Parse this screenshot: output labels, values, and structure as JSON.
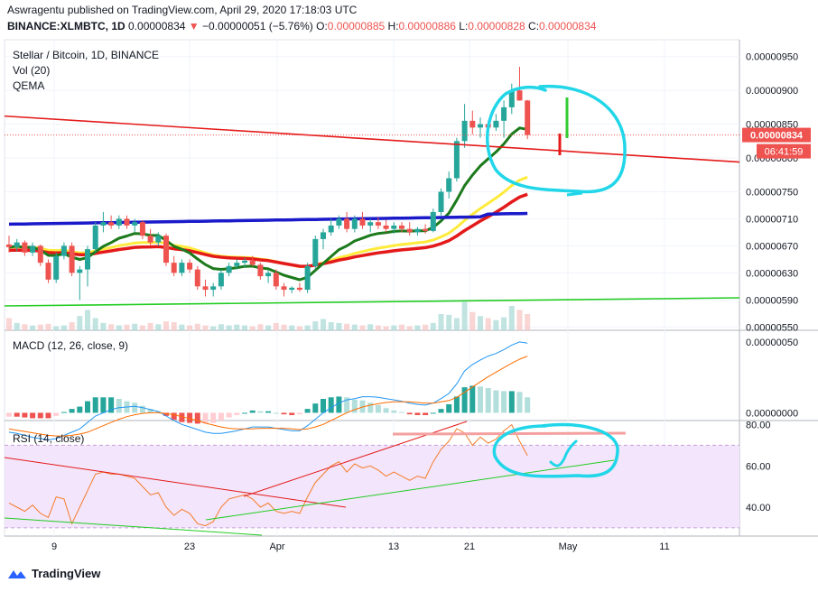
{
  "header": {
    "publisher_line": "Aswragentu published on TradingView.com, April 29, 2020 17:18:03 UTC",
    "symbol": "BINANCE:XLMBTC, 1D",
    "last_value": "0.00000834",
    "change_arrow": "▼",
    "change": "−0.00000051 (−5.76%)",
    "o_label": "O:",
    "o_value": "0.00000885",
    "h_label": "H:",
    "h_value": "0.00000886",
    "l_label": "L:",
    "l_value": "0.00000828",
    "c_label": "C:",
    "c_value": "0.00000834"
  },
  "legend": {
    "title": "Stellar / Bitcoin, 1D, BINANCE",
    "vol": "Vol (20)",
    "qema": "QEMA",
    "macd": "MACD (12, 26, close, 9)",
    "rsi": "RSI (14, close)"
  },
  "price_axis": {
    "ticks": [
      "0.00000950",
      "0.00000900",
      "0.00000850",
      "0.00000800",
      "0.00000750",
      "0.00000710",
      "0.00000670",
      "0.00000630",
      "0.00000590",
      "0.00000550"
    ],
    "last_price_tag": "0.00000834",
    "countdown_tag": "06:41:59"
  },
  "macd_axis": {
    "ticks": [
      "0.00000050",
      "0.00000000"
    ]
  },
  "rsi_axis": {
    "ticks": [
      "80.00",
      "60.00",
      "40.00"
    ]
  },
  "time_axis": {
    "ticks": [
      "9",
      "23",
      "Apr",
      "13",
      "21",
      "May",
      "11"
    ]
  },
  "footer": {
    "brand": "TradingView"
  },
  "colors": {
    "up": "#26a69a",
    "down": "#ef5350",
    "ma_blue": "#1a1aca",
    "ma_red": "#e41a1a",
    "ma_yellow": "#ffeb3b",
    "ma_green": "#1b7a1b",
    "macd": "#2196f3",
    "signal": "#ff6d00",
    "rsi": "#f57c2a",
    "rsi_band": "#f3e5fb",
    "trend_green": "#22cc22",
    "marker": "#20d6e8"
  },
  "chart_data": {
    "type": "candlestick",
    "candles": [
      {
        "o": 6.72,
        "h": 6.85,
        "l": 6.6,
        "c": 6.68
      },
      {
        "o": 6.68,
        "h": 6.8,
        "l": 6.62,
        "c": 6.75
      },
      {
        "o": 6.75,
        "h": 6.78,
        "l": 6.55,
        "c": 6.6
      },
      {
        "o": 6.6,
        "h": 6.75,
        "l": 6.55,
        "c": 6.7
      },
      {
        "o": 6.7,
        "h": 6.72,
        "l": 6.4,
        "c": 6.45
      },
      {
        "o": 6.45,
        "h": 6.5,
        "l": 6.15,
        "c": 6.2
      },
      {
        "o": 6.2,
        "h": 6.6,
        "l": 6.15,
        "c": 6.55
      },
      {
        "o": 6.55,
        "h": 6.75,
        "l": 6.5,
        "c": 6.7
      },
      {
        "o": 6.7,
        "h": 6.75,
        "l": 6.25,
        "c": 6.3
      },
      {
        "o": 6.3,
        "h": 6.4,
        "l": 5.9,
        "c": 6.35
      },
      {
        "o": 6.35,
        "h": 6.7,
        "l": 6.1,
        "c": 6.65
      },
      {
        "o": 6.65,
        "h": 7.05,
        "l": 6.6,
        "c": 7.0
      },
      {
        "o": 7.0,
        "h": 7.2,
        "l": 6.9,
        "c": 7.05
      },
      {
        "o": 7.05,
        "h": 7.15,
        "l": 6.95,
        "c": 7.0
      },
      {
        "o": 7.0,
        "h": 7.15,
        "l": 6.95,
        "c": 7.1
      },
      {
        "o": 7.1,
        "h": 7.15,
        "l": 6.95,
        "c": 7.0
      },
      {
        "o": 7.0,
        "h": 7.1,
        "l": 6.9,
        "c": 7.05
      },
      {
        "o": 7.05,
        "h": 7.08,
        "l": 6.8,
        "c": 6.85
      },
      {
        "o": 6.85,
        "h": 6.95,
        "l": 6.7,
        "c": 6.75
      },
      {
        "o": 6.75,
        "h": 6.9,
        "l": 6.7,
        "c": 6.85
      },
      {
        "o": 6.85,
        "h": 6.88,
        "l": 6.4,
        "c": 6.45
      },
      {
        "o": 6.45,
        "h": 6.55,
        "l": 6.25,
        "c": 6.3
      },
      {
        "o": 6.3,
        "h": 6.5,
        "l": 6.25,
        "c": 6.45
      },
      {
        "o": 6.45,
        "h": 6.5,
        "l": 6.3,
        "c": 6.35
      },
      {
        "o": 6.35,
        "h": 6.4,
        "l": 6.05,
        "c": 6.1
      },
      {
        "o": 6.1,
        "h": 6.2,
        "l": 5.95,
        "c": 6.05
      },
      {
        "o": 6.05,
        "h": 6.15,
        "l": 5.95,
        "c": 6.1
      },
      {
        "o": 6.1,
        "h": 6.35,
        "l": 6.05,
        "c": 6.3
      },
      {
        "o": 6.3,
        "h": 6.45,
        "l": 6.25,
        "c": 6.4
      },
      {
        "o": 6.4,
        "h": 6.5,
        "l": 6.35,
        "c": 6.45
      },
      {
        "o": 6.45,
        "h": 6.52,
        "l": 6.38,
        "c": 6.48
      },
      {
        "o": 6.48,
        "h": 6.55,
        "l": 6.4,
        "c": 6.42
      },
      {
        "o": 6.42,
        "h": 6.45,
        "l": 6.2,
        "c": 6.25
      },
      {
        "o": 6.25,
        "h": 6.35,
        "l": 6.15,
        "c": 6.3
      },
      {
        "o": 6.3,
        "h": 6.35,
        "l": 6.05,
        "c": 6.1
      },
      {
        "o": 6.1,
        "h": 6.15,
        "l": 5.95,
        "c": 6.05
      },
      {
        "o": 6.05,
        "h": 6.1,
        "l": 6.0,
        "c": 6.08
      },
      {
        "o": 6.08,
        "h": 6.15,
        "l": 6.02,
        "c": 6.05
      },
      {
        "o": 6.05,
        "h": 6.45,
        "l": 6.0,
        "c": 6.4
      },
      {
        "o": 6.4,
        "h": 6.85,
        "l": 6.35,
        "c": 6.8
      },
      {
        "o": 6.8,
        "h": 6.95,
        "l": 6.65,
        "c": 6.9
      },
      {
        "o": 6.9,
        "h": 7.1,
        "l": 6.85,
        "c": 7.0
      },
      {
        "o": 7.0,
        "h": 7.15,
        "l": 6.95,
        "c": 7.1
      },
      {
        "o": 7.1,
        "h": 7.2,
        "l": 6.9,
        "c": 6.95
      },
      {
        "o": 6.95,
        "h": 7.15,
        "l": 6.9,
        "c": 7.1
      },
      {
        "o": 7.1,
        "h": 7.2,
        "l": 6.95,
        "c": 7.0
      },
      {
        "o": 7.0,
        "h": 7.1,
        "l": 6.9,
        "c": 7.05
      },
      {
        "o": 7.05,
        "h": 7.12,
        "l": 6.95,
        "c": 7.0
      },
      {
        "o": 7.0,
        "h": 7.08,
        "l": 6.9,
        "c": 6.95
      },
      {
        "o": 6.95,
        "h": 7.05,
        "l": 6.88,
        "c": 7.0
      },
      {
        "o": 7.0,
        "h": 7.05,
        "l": 6.9,
        "c": 6.95
      },
      {
        "o": 6.95,
        "h": 7.05,
        "l": 6.85,
        "c": 6.9
      },
      {
        "o": 6.9,
        "h": 6.98,
        "l": 6.85,
        "c": 6.95
      },
      {
        "o": 6.95,
        "h": 7.02,
        "l": 6.88,
        "c": 6.92
      },
      {
        "o": 6.92,
        "h": 7.25,
        "l": 6.9,
        "c": 7.2
      },
      {
        "o": 7.2,
        "h": 7.55,
        "l": 7.15,
        "c": 7.5
      },
      {
        "o": 7.5,
        "h": 7.8,
        "l": 7.4,
        "c": 7.7
      },
      {
        "o": 7.7,
        "h": 8.3,
        "l": 7.65,
        "c": 8.25
      },
      {
        "o": 8.25,
        "h": 8.8,
        "l": 8.15,
        "c": 8.55
      },
      {
        "o": 8.55,
        "h": 8.7,
        "l": 8.35,
        "c": 8.45
      },
      {
        "o": 8.45,
        "h": 8.6,
        "l": 8.3,
        "c": 8.5
      },
      {
        "o": 8.5,
        "h": 8.55,
        "l": 8.35,
        "c": 8.45
      },
      {
        "o": 8.45,
        "h": 8.65,
        "l": 8.4,
        "c": 8.55
      },
      {
        "o": 8.55,
        "h": 8.85,
        "l": 8.3,
        "c": 8.75
      },
      {
        "o": 8.75,
        "h": 9.1,
        "l": 8.65,
        "c": 9.0
      },
      {
        "o": 9.0,
        "h": 9.35,
        "l": 8.85,
        "c": 8.85
      },
      {
        "o": 8.85,
        "h": 8.86,
        "l": 8.28,
        "c": 8.34
      }
    ],
    "candle_unit": "1e-6 BTC",
    "volume": [
      30,
      18,
      15,
      12,
      14,
      16,
      10,
      12,
      20,
      35,
      50,
      30,
      18,
      15,
      12,
      14,
      16,
      12,
      18,
      15,
      22,
      20,
      14,
      12,
      16,
      12,
      10,
      15,
      12,
      14,
      12,
      10,
      15,
      12,
      18,
      14,
      12,
      10,
      12,
      22,
      28,
      20,
      18,
      16,
      14,
      12,
      15,
      12,
      10,
      12,
      14,
      10,
      12,
      14,
      18,
      40,
      38,
      30,
      70,
      45,
      35,
      30,
      25,
      32,
      60,
      50,
      40
    ],
    "macd": [
      -0.3,
      -0.32,
      -0.35,
      -0.38,
      -0.4,
      -0.42,
      -0.4,
      -0.35,
      -0.3,
      -0.25,
      -0.15,
      -0.05,
      0.0,
      0.05,
      0.08,
      0.09,
      0.1,
      0.08,
      0.05,
      0.02,
      -0.05,
      -0.12,
      -0.18,
      -0.22,
      -0.26,
      -0.3,
      -0.32,
      -0.32,
      -0.3,
      -0.28,
      -0.25,
      -0.22,
      -0.22,
      -0.22,
      -0.24,
      -0.26,
      -0.28,
      -0.28,
      -0.2,
      -0.1,
      0.0,
      0.08,
      0.15,
      0.2,
      0.22,
      0.25,
      0.25,
      0.24,
      0.22,
      0.2,
      0.18,
      0.15,
      0.13,
      0.12,
      0.15,
      0.22,
      0.3,
      0.45,
      0.65,
      0.75,
      0.82,
      0.88,
      0.92,
      0.98,
      1.05,
      1.1,
      1.08
    ],
    "signal": [
      -0.25,
      -0.27,
      -0.29,
      -0.31,
      -0.33,
      -0.35,
      -0.36,
      -0.36,
      -0.35,
      -0.33,
      -0.3,
      -0.25,
      -0.2,
      -0.15,
      -0.1,
      -0.06,
      -0.03,
      -0.01,
      0.0,
      0.0,
      -0.01,
      -0.03,
      -0.06,
      -0.09,
      -0.12,
      -0.16,
      -0.19,
      -0.22,
      -0.24,
      -0.25,
      -0.25,
      -0.25,
      -0.24,
      -0.24,
      -0.24,
      -0.24,
      -0.25,
      -0.26,
      -0.25,
      -0.22,
      -0.18,
      -0.12,
      -0.06,
      0.0,
      0.05,
      0.09,
      0.12,
      0.14,
      0.16,
      0.17,
      0.17,
      0.17,
      0.16,
      0.15,
      0.15,
      0.17,
      0.19,
      0.24,
      0.32,
      0.4,
      0.48,
      0.56,
      0.63,
      0.7,
      0.77,
      0.83,
      0.88
    ],
    "rsi": [
      42,
      40,
      38,
      41,
      37,
      35,
      45,
      44,
      32,
      40,
      48,
      56,
      57,
      56,
      56,
      55,
      54,
      50,
      46,
      47,
      40,
      36,
      39,
      37,
      32,
      31,
      33,
      40,
      44,
      45,
      46,
      44,
      40,
      42,
      38,
      37,
      38,
      37,
      45,
      52,
      56,
      60,
      62,
      57,
      61,
      59,
      60,
      58,
      55,
      57,
      55,
      53,
      55,
      54,
      62,
      68,
      72,
      78,
      76,
      70,
      74,
      71,
      73,
      77,
      80,
      72,
      65
    ],
    "hlines_rsi": [
      70,
      30
    ],
    "price_ylim": [
      5.45,
      9.75
    ],
    "macd_ylim": [
      -0.12,
      1.28
    ],
    "rsi_ylim": [
      26,
      82
    ]
  }
}
